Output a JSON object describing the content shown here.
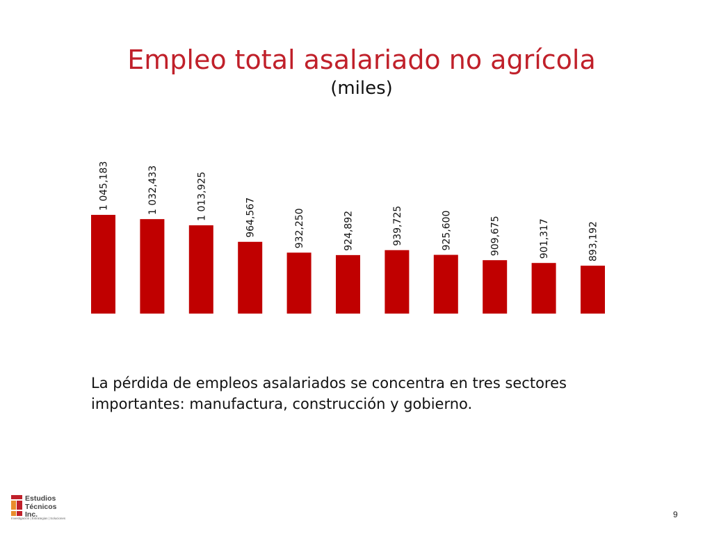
{
  "slide": {
    "title": "Empleo total asalariado no agrícola",
    "subtitle": "(miles)",
    "note": "La pérdida de empleos asalariados se concentra en tres sectores importantes: manufactura, construcción y gobierno.",
    "page_number": "9",
    "logo": {
      "line1": "Estudios",
      "line2": "Técnicos",
      "line3": "Inc.",
      "tagline": "Investigación | Estrategias | Soluciones"
    }
  },
  "colors": {
    "bar": "#c00000",
    "title": "#c0202a"
  },
  "chart_data": {
    "type": "bar",
    "title": "Empleo total asalariado no agrícola",
    "subtitle": "(miles)",
    "values": [
      1045.183,
      1032.433,
      1013.925,
      964.567,
      932.25,
      924.892,
      939.725,
      925.6,
      909.675,
      901.317,
      893.192
    ],
    "labels": [
      "1 045,183",
      "1 032,433",
      "1 013,925",
      "964,567",
      "932,250",
      "924,892",
      "939,725",
      "925,600",
      "909,675",
      "901,317",
      "893,192"
    ],
    "ylim": [
      750,
      1050
    ],
    "grid": false,
    "legend": "none"
  }
}
